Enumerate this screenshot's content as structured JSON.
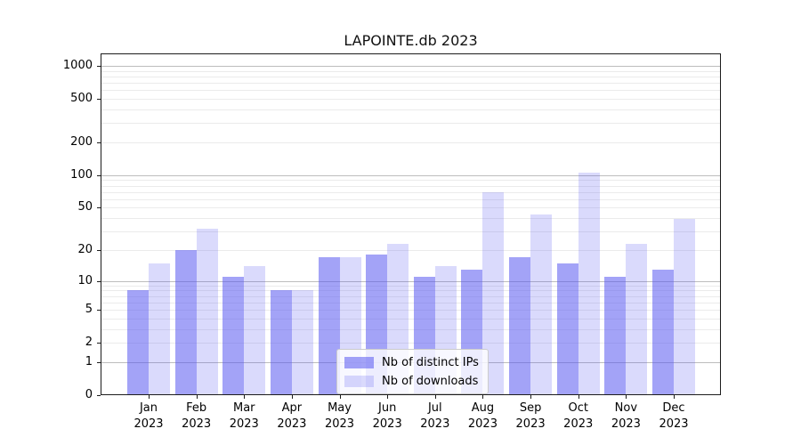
{
  "title": "LAPOINTE.db 2023",
  "colors": {
    "ips": "rgba(88,88,240,0.55)",
    "downloads": "rgba(88,88,240,0.22)",
    "grid_major": "#bdbdbd",
    "grid_minor": "#ebebeb",
    "axis_frame": "#1c1c1c"
  },
  "legend": {
    "items": [
      {
        "label": "Nb of distinct IPs",
        "series": "ips"
      },
      {
        "label": "Nb of downloads",
        "series": "downloads"
      }
    ]
  },
  "chart_data": {
    "type": "bar",
    "title": "LAPOINTE.db 2023",
    "categories": [
      "Jan",
      "Feb",
      "Mar",
      "Apr",
      "May",
      "Jun",
      "Jul",
      "Aug",
      "Sep",
      "Oct",
      "Nov",
      "Dec"
    ],
    "year_label": "2023",
    "series": [
      {
        "name": "Nb of distinct IPs",
        "values": [
          8,
          20,
          11,
          8,
          17,
          18,
          11,
          13,
          17,
          15,
          11,
          13
        ]
      },
      {
        "name": "Nb of downloads",
        "values": [
          15,
          32,
          14,
          8,
          17,
          23,
          14,
          70,
          43,
          105,
          23,
          39
        ]
      }
    ],
    "y_scale": "log10(1+y)",
    "y_ticks": [
      1000,
      500,
      200,
      100,
      50,
      20,
      10,
      5,
      2,
      1,
      0
    ],
    "y_tick_labels": [
      "1000",
      "500",
      "200",
      "100",
      "50",
      "20",
      "10",
      "5",
      "2",
      "1",
      "0"
    ],
    "ylim": [
      0,
      1300
    ],
    "xlabel": "",
    "ylabel": "",
    "grid": true,
    "legend_position": "lower center"
  }
}
